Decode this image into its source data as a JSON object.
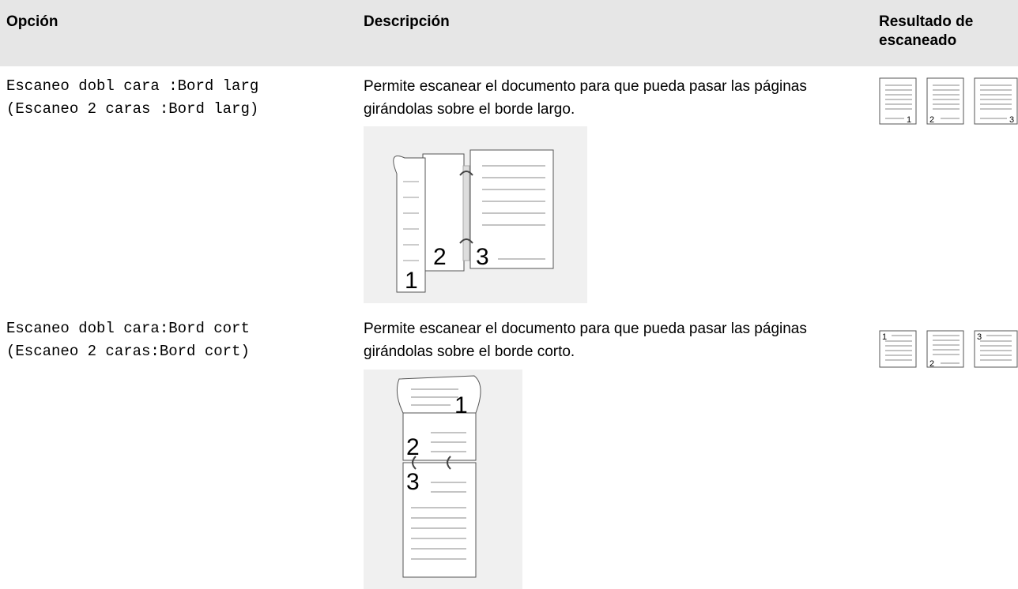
{
  "table": {
    "headers": [
      "Opción",
      "Descripción",
      "Resultado de escaneado"
    ],
    "rows": [
      {
        "option": "Escaneo dobl cara :Bord larg",
        "option_alt": "(Escaneo 2 caras :Bord larg)",
        "description": "Permite escanear el documento para que pueda pasar las páginas girándolas sobre el borde largo.",
        "page_labels": [
          "1",
          "2",
          "3"
        ]
      },
      {
        "option": "Escaneo dobl cara:Bord cort",
        "option_alt": "(Escaneo 2 caras:Bord cort)",
        "description": "Permite escanear el documento para que pueda pasar las páginas girándolas sobre el borde corto.",
        "page_labels": [
          "1",
          "2",
          "3"
        ]
      }
    ]
  }
}
